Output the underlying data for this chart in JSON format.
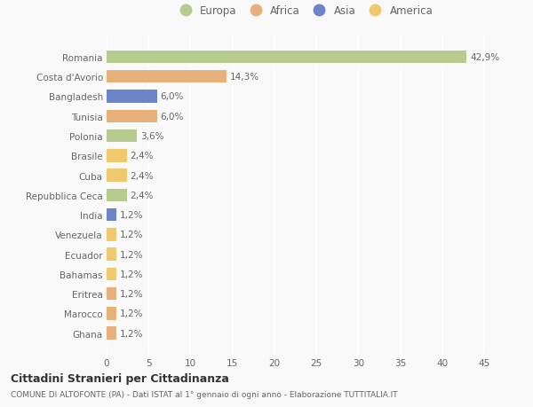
{
  "countries": [
    "Romania",
    "Costa d'Avorio",
    "Bangladesh",
    "Tunisia",
    "Polonia",
    "Brasile",
    "Cuba",
    "Repubblica Ceca",
    "India",
    "Venezuela",
    "Ecuador",
    "Bahamas",
    "Eritrea",
    "Marocco",
    "Ghana"
  ],
  "values": [
    42.9,
    14.3,
    6.0,
    6.0,
    3.6,
    2.4,
    2.4,
    2.4,
    1.2,
    1.2,
    1.2,
    1.2,
    1.2,
    1.2,
    1.2
  ],
  "labels": [
    "42,9%",
    "14,3%",
    "6,0%",
    "6,0%",
    "3,6%",
    "2,4%",
    "2,4%",
    "2,4%",
    "1,2%",
    "1,2%",
    "1,2%",
    "1,2%",
    "1,2%",
    "1,2%",
    "1,2%"
  ],
  "colors": [
    "#b5cc8e",
    "#e8b07a",
    "#6b85c8",
    "#e8b07a",
    "#b5cc8e",
    "#f0c96e",
    "#f0c96e",
    "#b5cc8e",
    "#6b85c8",
    "#f0c96e",
    "#f0c96e",
    "#f0c96e",
    "#e8b07a",
    "#e8b07a",
    "#e8b07a"
  ],
  "legend_labels": [
    "Europa",
    "Africa",
    "Asia",
    "America"
  ],
  "legend_colors": [
    "#b5cc8e",
    "#e8b07a",
    "#6b85c8",
    "#f0c96e"
  ],
  "xlim": [
    0,
    47
  ],
  "xticks": [
    0,
    5,
    10,
    15,
    20,
    25,
    30,
    35,
    40,
    45
  ],
  "title": "Cittadini Stranieri per Cittadinanza",
  "subtitle": "COMUNE DI ALTOFONTE (PA) - Dati ISTAT al 1° gennaio di ogni anno - Elaborazione TUTTITALIA.IT",
  "background_color": "#f9f9f9",
  "bar_height": 0.65,
  "label_fontsize": 7.5,
  "tick_fontsize": 7.5,
  "grid_color": "#ffffff",
  "title_fontsize": 9,
  "subtitle_fontsize": 6.5,
  "legend_fontsize": 8.5
}
